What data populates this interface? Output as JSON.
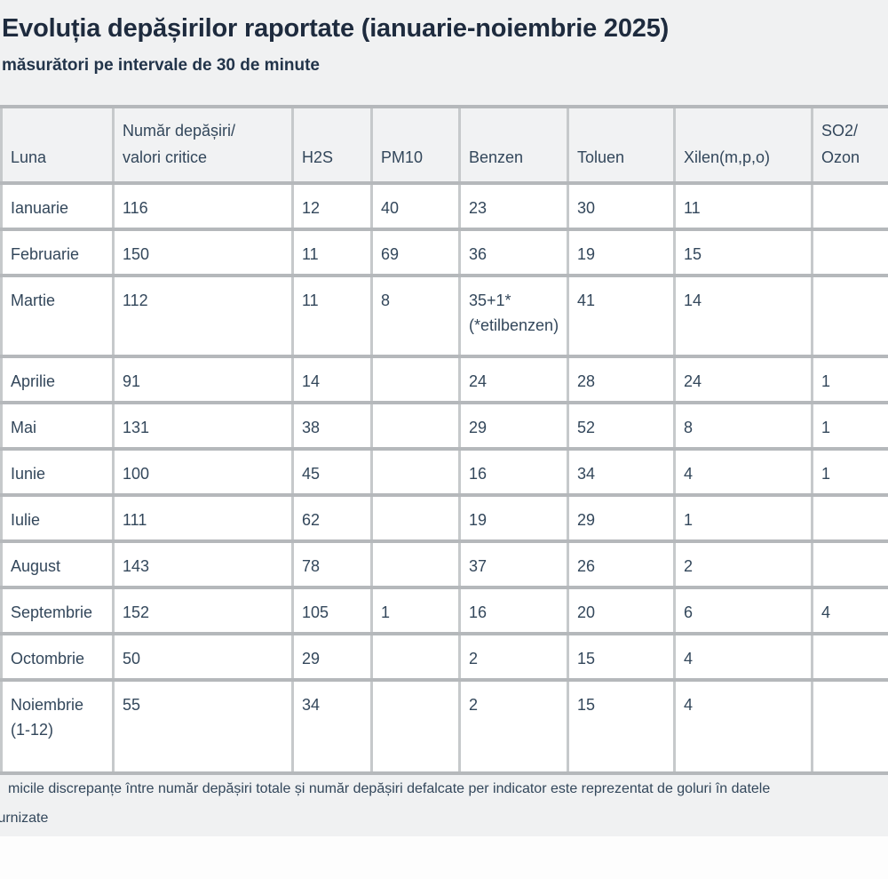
{
  "header": {
    "title": "Evoluția depășirilor raportate (ianuarie-noiembrie 2025)",
    "subtitle": "măsurători pe intervale de 30 de minute"
  },
  "chart_data": {
    "type": "table",
    "title": "Evoluția depășirilor raportate (ianuarie-noiembrie 2025)",
    "subtitle": "măsurători pe intervale de 30 de minute",
    "columns": [
      "Luna",
      "Număr depășiri/\nvalori critice",
      "H2S",
      "PM10",
      "Benzen",
      "Toluen",
      "Xilen(m,p,o)",
      "SO2/\nOzon"
    ],
    "rows": [
      [
        "Ianuarie",
        116,
        12,
        40,
        23,
        30,
        11,
        ""
      ],
      [
        "Februarie",
        150,
        11,
        69,
        36,
        19,
        15,
        ""
      ],
      [
        "Martie",
        112,
        11,
        8,
        "35+1*\n(*etilbenzen)",
        41,
        14,
        ""
      ],
      [
        "Aprilie",
        91,
        14,
        "",
        24,
        28,
        24,
        1
      ],
      [
        "Mai",
        131,
        38,
        "",
        29,
        52,
        8,
        1
      ],
      [
        "Iunie",
        100,
        45,
        "",
        16,
        34,
        4,
        1
      ],
      [
        "Iulie",
        111,
        62,
        "",
        19,
        29,
        1,
        ""
      ],
      [
        "August",
        143,
        78,
        "",
        37,
        26,
        2,
        ""
      ],
      [
        "Septembrie",
        152,
        105,
        1,
        16,
        20,
        6,
        4
      ],
      [
        "Octombrie",
        50,
        29,
        "",
        2,
        15,
        4,
        ""
      ],
      [
        "Noiembrie (1-12)",
        55,
        34,
        "",
        2,
        15,
        4,
        ""
      ]
    ],
    "notes": "micile discrepanțe între număr depășiri totale și număr  depășiri defalcate per indicator este reprezentat de goluri în datele furnizate"
  },
  "footnote": {
    "line1": "micile discrepanțe între număr depășiri totale și număr  depășiri defalcate per indicator este reprezentat de goluri în datele",
    "line2": "furnizate"
  },
  "colors": {
    "page_bg": "#f0f1f2",
    "cell_bg": "#ffffff",
    "header_bg": "#f1f2f3",
    "border_horizontal": "#b5b8bb",
    "border_vertical": "#c6c9cb",
    "title_ink": "#1e2b3e",
    "body_ink": "#33475b"
  }
}
